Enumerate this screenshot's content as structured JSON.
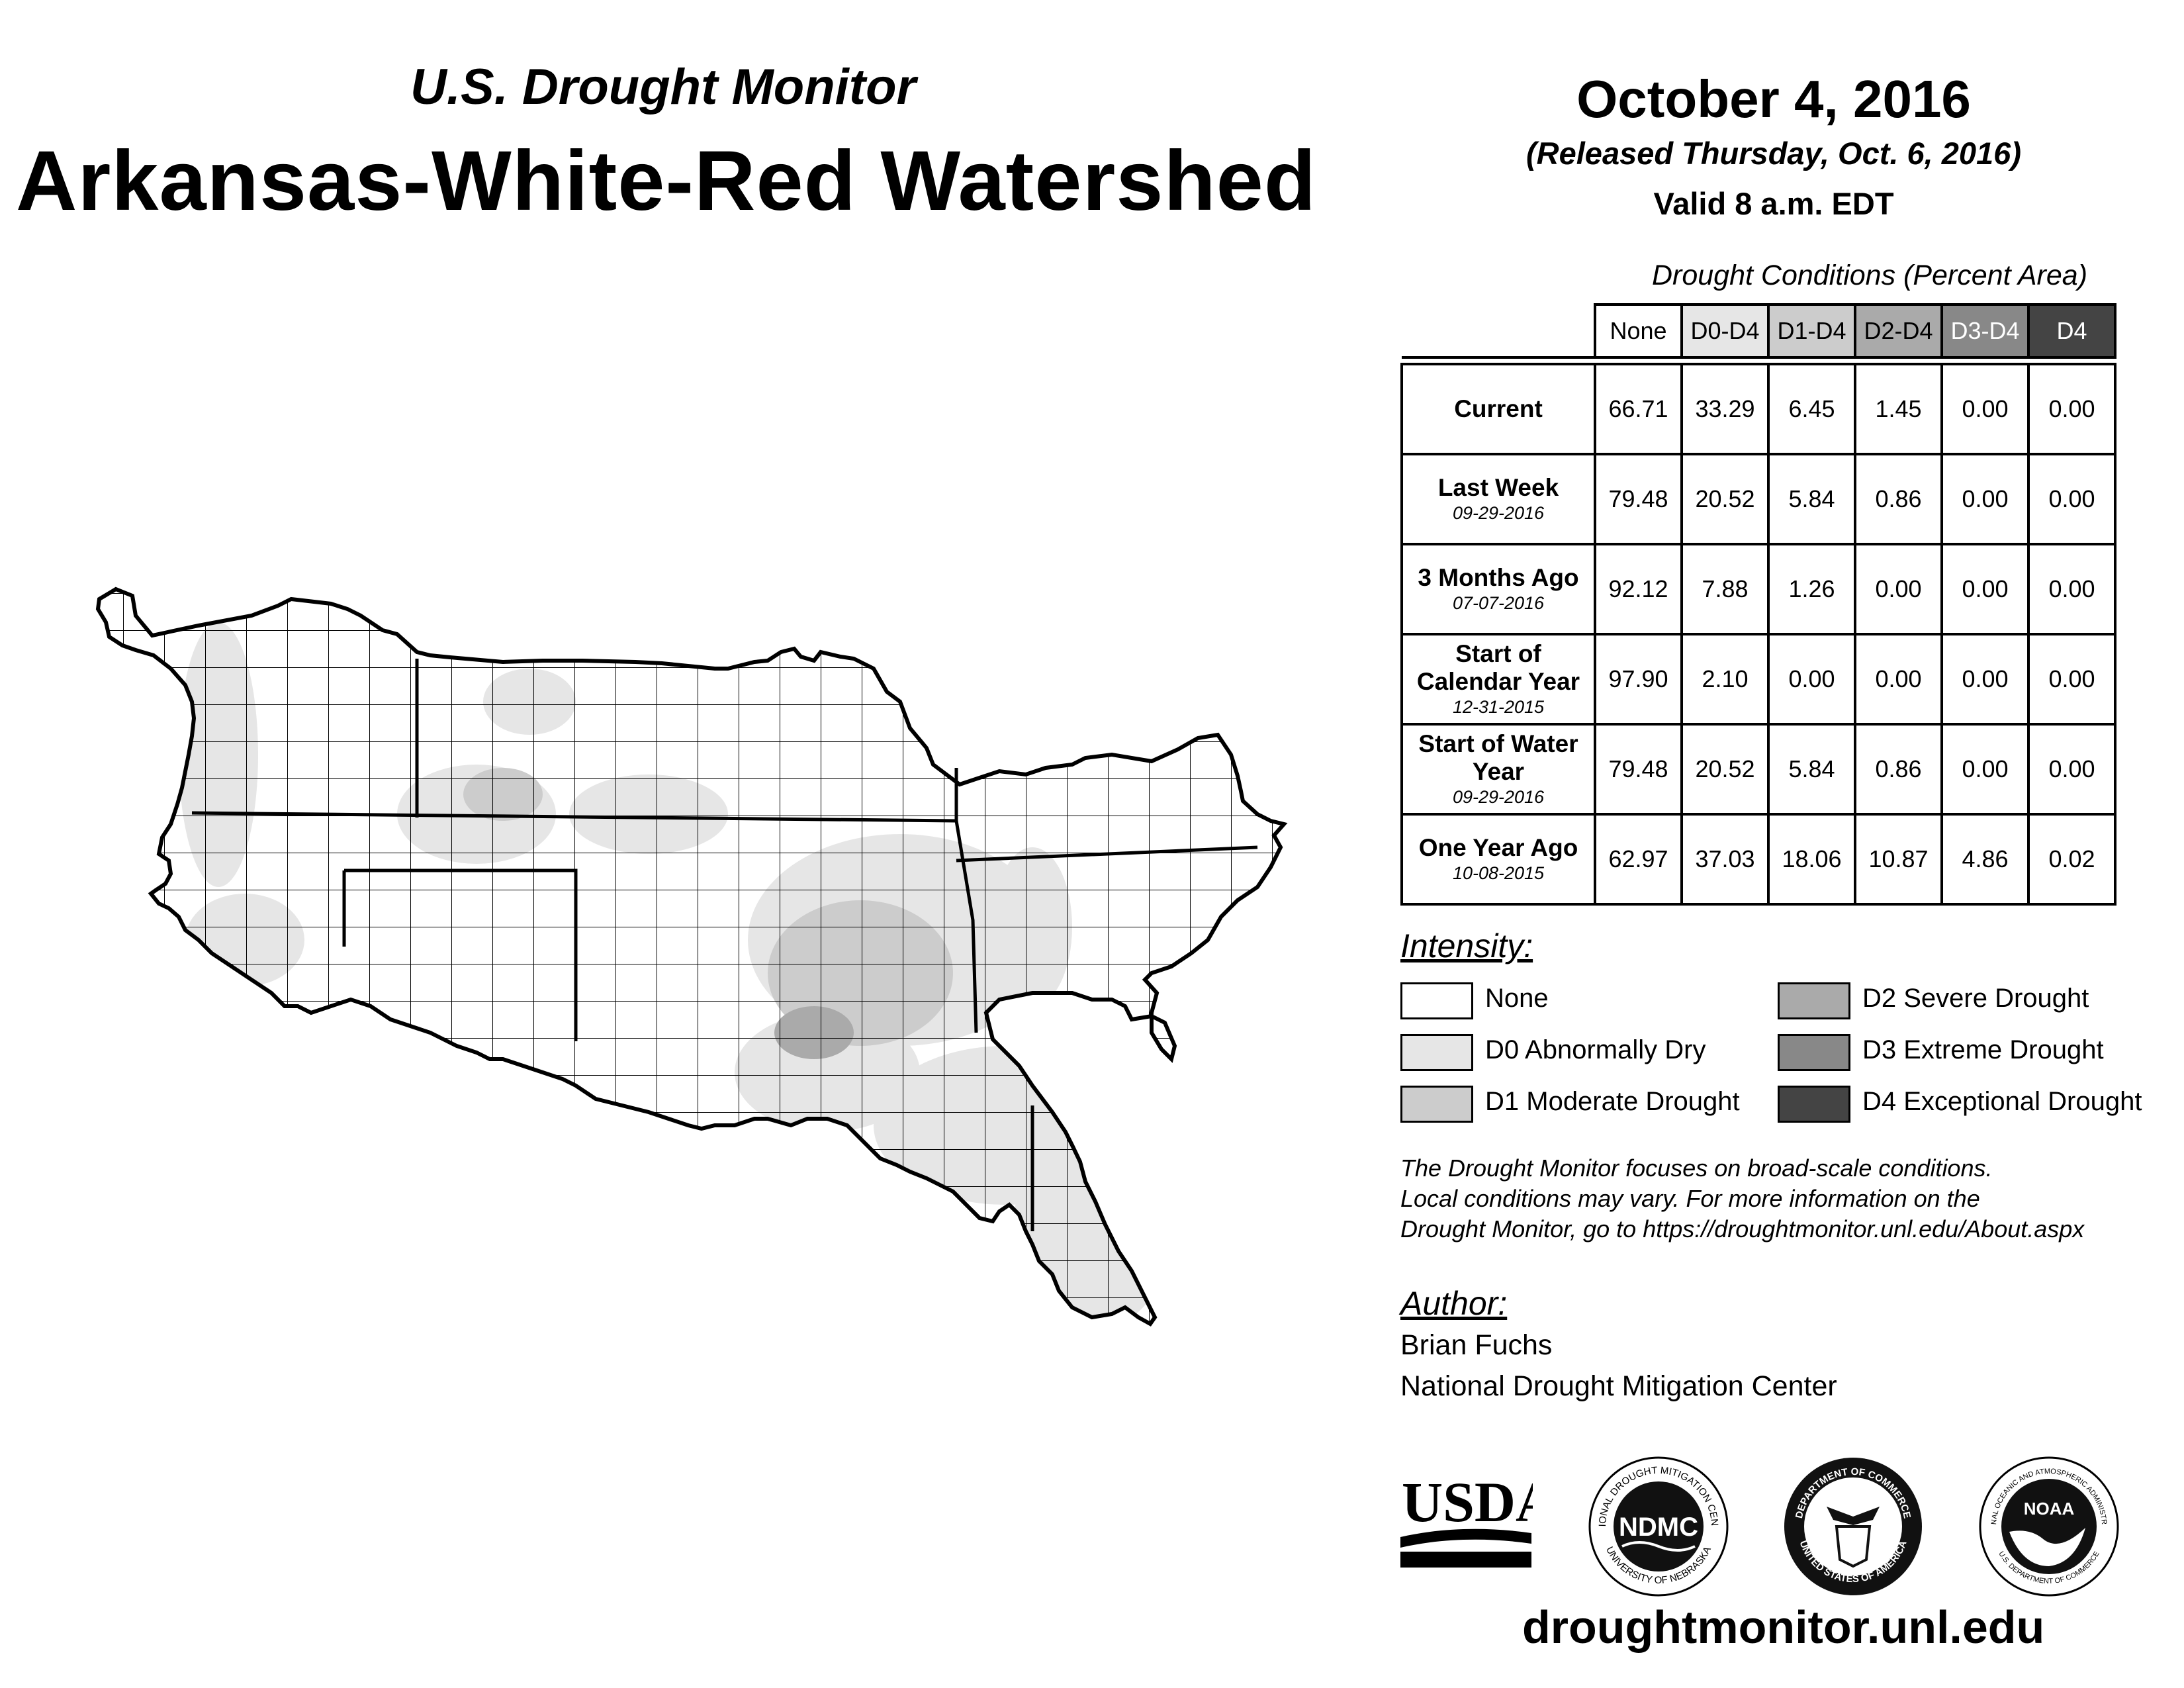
{
  "header": {
    "subtitle": "U.S. Drought Monitor",
    "title": "Arkansas-White-Red Watershed",
    "date": "October 4, 2016",
    "released": "(Released Thursday, Oct. 6, 2016)",
    "valid": "Valid 8 a.m. EDT"
  },
  "table": {
    "caption": "Drought Conditions (Percent Area)",
    "columns": [
      "None",
      "D0-D4",
      "D1-D4",
      "D2-D4",
      "D3-D4",
      "D4"
    ],
    "rows": [
      {
        "label": "Current",
        "date": "",
        "values": [
          "66.71",
          "33.29",
          "6.45",
          "1.45",
          "0.00",
          "0.00"
        ]
      },
      {
        "label": "Last Week",
        "date": "09-29-2016",
        "values": [
          "79.48",
          "20.52",
          "5.84",
          "0.86",
          "0.00",
          "0.00"
        ]
      },
      {
        "label": "3 Months Ago",
        "date": "07-07-2016",
        "values": [
          "92.12",
          "7.88",
          "1.26",
          "0.00",
          "0.00",
          "0.00"
        ]
      },
      {
        "label": "Start of Calendar Year",
        "date": "12-31-2015",
        "values": [
          "97.90",
          "2.10",
          "0.00",
          "0.00",
          "0.00",
          "0.00"
        ]
      },
      {
        "label": "Start of Water Year",
        "date": "09-29-2016",
        "values": [
          "79.48",
          "20.52",
          "5.84",
          "0.86",
          "0.00",
          "0.00"
        ]
      },
      {
        "label": "One Year Ago",
        "date": "10-08-2015",
        "values": [
          "62.97",
          "37.03",
          "18.06",
          "10.87",
          "4.86",
          "0.02"
        ]
      }
    ]
  },
  "legend": {
    "heading": "Intensity:",
    "items": [
      {
        "label": "None",
        "color": "#ffffff"
      },
      {
        "label": "D0 Abnormally Dry",
        "color": "#e6e6e6"
      },
      {
        "label": "D1 Moderate Drought",
        "color": "#cccccc"
      },
      {
        "label": "D2 Severe Drought",
        "color": "#aaaaaa"
      },
      {
        "label": "D3 Extreme Drought",
        "color": "#888888"
      },
      {
        "label": "D4 Exceptional Drought",
        "color": "#444444"
      }
    ]
  },
  "note": {
    "line1": "The Drought Monitor focuses on broad-scale conditions.",
    "line2": "Local conditions may vary. For more information on the",
    "line3": "Drought Monitor, go to https://droughtmonitor.unl.edu/About.aspx"
  },
  "author": {
    "heading": "Author:",
    "name": "Brian Fuchs",
    "org": "National Drought Mitigation Center"
  },
  "logos": {
    "usda": "USDA",
    "ndmc_center": "NDMC",
    "ndmc_ring_top": "NATIONAL DROUGHT MITIGATION CENTER",
    "ndmc_ring_bottom": "UNIVERSITY OF NEBRASKA",
    "doc_ring_top": "DEPARTMENT OF COMMERCE",
    "doc_ring_bottom": "UNITED STATES OF AMERICA",
    "noaa_center": "NOAA",
    "noaa_ring_top": "NATIONAL OCEANIC AND ATMOSPHERIC ADMINISTRATION",
    "noaa_ring_bottom": "U.S. DEPARTMENT OF COMMERCE"
  },
  "footer_url": "droughtmonitor.unl.edu"
}
